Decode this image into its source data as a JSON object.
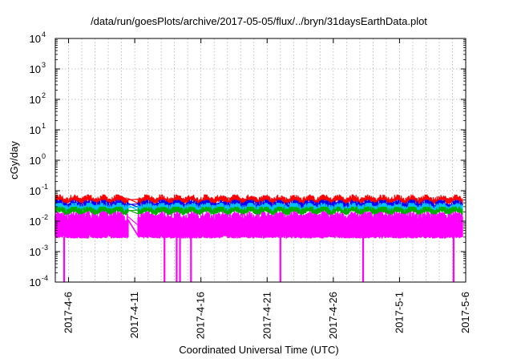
{
  "chart_data": {
    "type": "line",
    "title": "/data/run/goesPlots/archive/2017-05-05/flux/../bryn/31daysEarthData.plot",
    "xlabel": "Coordinated Universal Time (UTC)",
    "ylabel": "cGy/day",
    "yscale": "log",
    "ylim": [
      0.0001,
      10000
    ],
    "xlim": [
      "2017-04-05",
      "2017-05-06"
    ],
    "y_ticks": [
      {
        "base": "10",
        "exp": "-4",
        "value": 0.0001
      },
      {
        "base": "10",
        "exp": "-3",
        "value": 0.001
      },
      {
        "base": "10",
        "exp": "-2",
        "value": 0.01
      },
      {
        "base": "10",
        "exp": "-1",
        "value": 0.1
      },
      {
        "base": "10",
        "exp": "0",
        "value": 1
      },
      {
        "base": "10",
        "exp": "1",
        "value": 10
      },
      {
        "base": "10",
        "exp": "2",
        "value": 100
      },
      {
        "base": "10",
        "exp": "3",
        "value": 1000
      },
      {
        "base": "10",
        "exp": "4",
        "value": 10000
      }
    ],
    "x_ticks": [
      {
        "label": "2017-4-6",
        "date": "2017-04-06"
      },
      {
        "label": "2017-4-11",
        "date": "2017-04-11"
      },
      {
        "label": "2017-4-16",
        "date": "2017-04-16"
      },
      {
        "label": "2017-4-21",
        "date": "2017-04-21"
      },
      {
        "label": "2017-4-26",
        "date": "2017-04-26"
      },
      {
        "label": "2017-5-1",
        "date": "2017-05-01"
      },
      {
        "label": "2017-5-6",
        "date": "2017-05-06"
      }
    ],
    "grid": true,
    "data_gap": [
      "2017-04-10 12:00",
      "2017-04-11 06:00"
    ],
    "dropouts": [
      "2017-04-05 16:00",
      "2017-04-13 06:00",
      "2017-04-14 04:00",
      "2017-04-14 10:00",
      "2017-04-15 06:00",
      "2017-04-22 00:00",
      "2017-04-28 06:00",
      "2017-05-05 02:00"
    ],
    "series": [
      {
        "color": "#ff0000",
        "median": 0.05,
        "min": 0.04,
        "max": 0.075
      },
      {
        "color": "#0000ff",
        "median": 0.035,
        "min": 0.025,
        "max": 0.05
      },
      {
        "color": "#00c0ff",
        "median": 0.028,
        "min": 0.018,
        "max": 0.04
      },
      {
        "color": "#00b000",
        "median": 0.022,
        "min": 0.014,
        "max": 0.03
      },
      {
        "color": "#ff00ff",
        "median": 0.007,
        "min": 0.003,
        "max": 0.02
      }
    ]
  }
}
